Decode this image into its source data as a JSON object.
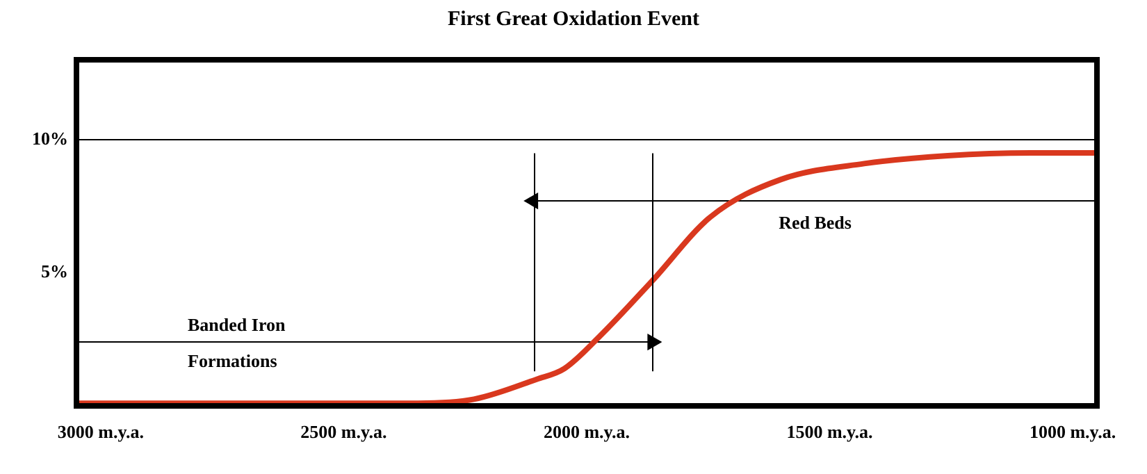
{
  "chart_data": {
    "type": "line",
    "title": "First Great Oxidation Event",
    "x": [
      3050,
      2347,
      2232,
      2103,
      2046,
      1974,
      1865,
      1745,
      1601,
      1429,
      1257,
      1085,
      950
    ],
    "series": [
      {
        "color": "#d9381e",
        "values": [
          0.1,
          0.1,
          0.25,
          1.0,
          1.4,
          2.6,
          4.7,
          7.1,
          8.5,
          9.1,
          9.4,
          9.5,
          9.5
        ]
      },
      {
        "type": "line",
        "name": "Red Beds",
        "color": "#000000",
        "marker": "triangle",
        "x": [
          950,
          2110
        ],
        "values": [
          7.7,
          7.7
        ]
      },
      {
        "type": "line",
        "name": "Banded Iron Formations",
        "color": "#000000",
        "marker": "triangle",
        "x": [
          3050,
          1865
        ],
        "values": [
          2.4,
          2.4
        ]
      }
    ],
    "xlim": [
      3050,
      950
    ],
    "xticks": [
      {
        "value": 3000,
        "label": "3000 m.y.a."
      },
      {
        "value": 2500,
        "label": "2500 m.y.a."
      },
      {
        "value": 2000,
        "label": "2000 m.y.a."
      },
      {
        "value": 1500,
        "label": "1500 m.y.a."
      },
      {
        "value": 1000,
        "label": "1000 m.y.a."
      }
    ],
    "ylim": [
      0,
      13
    ],
    "yticks": [
      {
        "value": 5,
        "label": "5%"
      },
      {
        "value": 10,
        "label": "10%"
      }
    ],
    "ref_lines": [
      {
        "axis": "y",
        "value": 10,
        "color": "#000000"
      },
      {
        "axis": "x",
        "value": 2110,
        "color": "#000000"
      },
      {
        "axis": "x",
        "value": 1865,
        "color": "#000000"
      }
    ],
    "grid": false,
    "legend": false,
    "marker": "none",
    "line_style": "solid"
  }
}
